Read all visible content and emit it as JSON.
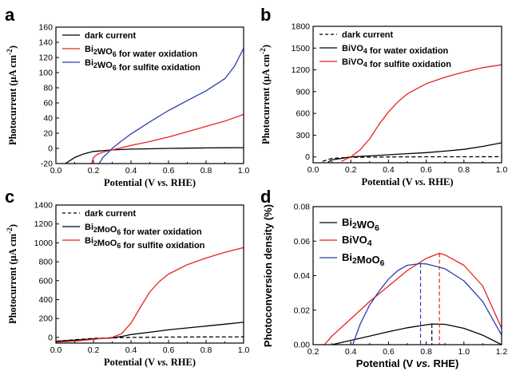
{
  "chart_data": [
    {
      "panel": "a",
      "type": "line",
      "xlabel": "Potential (V vs. RHE)",
      "ylabel": "Photocurrent (μA cm⁻²)",
      "xlim": [
        0.0,
        1.0
      ],
      "ylim": [
        -20,
        160
      ],
      "xticks": [
        "0.0",
        "0.2",
        "0.4",
        "0.6",
        "0.8",
        "1.0"
      ],
      "yticks": [
        "-20",
        "0",
        "20",
        "40",
        "60",
        "80",
        "100",
        "120",
        "140",
        "160"
      ],
      "legend": "top-left",
      "series": [
        {
          "name": "dark current",
          "color": "#000000",
          "dash": "solid",
          "x": [
            0.05,
            0.1,
            0.15,
            0.2,
            0.3,
            0.4,
            0.5,
            0.6,
            0.7,
            0.8,
            0.9,
            1.0
          ],
          "y": [
            -20,
            -12,
            -7,
            -4,
            -2,
            -1,
            -0.5,
            0,
            0.3,
            0.6,
            0.8,
            1
          ]
        },
        {
          "name": "Bi₂WO₆ for water oxidation",
          "color": "#e8221f",
          "dash": "solid",
          "x": [
            0.19,
            0.2,
            0.22,
            0.25,
            0.3,
            0.4,
            0.5,
            0.6,
            0.7,
            0.8,
            0.9,
            1.0
          ],
          "y": [
            -20,
            -12,
            -8,
            -5,
            -2,
            4,
            9,
            15,
            22,
            29,
            36,
            45
          ]
        },
        {
          "name": "Bi₂WO₆ for sulfite oxidation",
          "color": "#2b3fb0",
          "dash": "solid",
          "x": [
            0.23,
            0.25,
            0.28,
            0.3,
            0.35,
            0.4,
            0.5,
            0.6,
            0.7,
            0.8,
            0.9,
            0.95,
            1.0
          ],
          "y": [
            -20,
            -12,
            -5,
            0,
            10,
            19,
            35,
            50,
            63,
            76,
            92,
            108,
            132
          ]
        }
      ]
    },
    {
      "panel": "b",
      "type": "line",
      "xlabel": "Potential (V vs. RHE)",
      "ylabel": "Photocurrent (μA cm⁻²)",
      "xlim": [
        0.0,
        1.0
      ],
      "ylim": [
        -80,
        1800
      ],
      "xticks": [
        "0.0",
        "0.2",
        "0.4",
        "0.6",
        "0.8",
        "1.0"
      ],
      "yticks": [
        "0",
        "300",
        "600",
        "900",
        "1200",
        "1500",
        "1800"
      ],
      "legend": "top-left",
      "series": [
        {
          "name": "dark current",
          "color": "#000000",
          "dash": "dashed",
          "x": [
            0.05,
            0.1,
            0.2,
            0.4,
            0.6,
            0.8,
            1.0
          ],
          "y": [
            -60,
            -20,
            -5,
            0,
            2,
            3,
            4
          ]
        },
        {
          "name": "BiVO₄ for water oxidation",
          "color": "#000000",
          "dash": "solid",
          "x": [
            0.08,
            0.1,
            0.2,
            0.3,
            0.4,
            0.5,
            0.6,
            0.7,
            0.8,
            0.9,
            1.0
          ],
          "y": [
            -70,
            -40,
            0,
            15,
            30,
            45,
            60,
            80,
            105,
            145,
            195
          ]
        },
        {
          "name": "BiVO₄ for sulfite oxidation",
          "color": "#e8221f",
          "dash": "solid",
          "x": [
            0.15,
            0.2,
            0.25,
            0.3,
            0.35,
            0.4,
            0.45,
            0.5,
            0.6,
            0.7,
            0.8,
            0.9,
            1.0
          ],
          "y": [
            -60,
            0,
            100,
            250,
            450,
            620,
            760,
            870,
            1010,
            1100,
            1170,
            1230,
            1270
          ]
        }
      ]
    },
    {
      "panel": "c",
      "type": "line",
      "xlabel": "Potential (V vs. RHE)",
      "ylabel": "Photocurrent (μA cm⁻²)",
      "xlim": [
        0.0,
        1.0
      ],
      "ylim": [
        -60,
        1400
      ],
      "xticks": [
        "0.0",
        "0.2",
        "0.4",
        "0.6",
        "0.8",
        "1.0"
      ],
      "yticks": [
        "0",
        "200",
        "400",
        "600",
        "800",
        "1000",
        "1200",
        "1400"
      ],
      "legend": "top-left",
      "series": [
        {
          "name": "dark current",
          "color": "#000000",
          "dash": "dashed",
          "x": [
            0.0,
            0.2,
            0.4,
            0.6,
            0.8,
            1.0
          ],
          "y": [
            -40,
            -10,
            0,
            3,
            5,
            6
          ]
        },
        {
          "name": "Bi₂MoO₆ for water oxidation",
          "color": "#000000",
          "dash": "solid",
          "x": [
            0.0,
            0.1,
            0.2,
            0.3,
            0.35,
            0.4,
            0.5,
            0.6,
            0.7,
            0.8,
            0.9,
            1.0
          ],
          "y": [
            -40,
            -30,
            -15,
            -5,
            10,
            30,
            55,
            80,
            100,
            120,
            140,
            160
          ]
        },
        {
          "name": "Bi₂MoO₆ for sulfite oxidation",
          "color": "#e8221f",
          "dash": "solid",
          "x": [
            0.0,
            0.1,
            0.2,
            0.3,
            0.35,
            0.4,
            0.45,
            0.5,
            0.55,
            0.6,
            0.7,
            0.8,
            0.9,
            1.0
          ],
          "y": [
            -50,
            -40,
            -20,
            0,
            40,
            150,
            320,
            480,
            590,
            670,
            770,
            840,
            900,
            950
          ]
        }
      ]
    },
    {
      "panel": "d",
      "type": "line",
      "xlabel": "Potential (V vs. RHE)",
      "ylabel": "Photoconversion density (%)",
      "xlim": [
        0.2,
        1.2
      ],
      "ylim": [
        0.0,
        0.08
      ],
      "xticks": [
        "0.2",
        "0.4",
        "0.6",
        "0.8",
        "1.0",
        "1.2"
      ],
      "yticks": [
        "0.00",
        "0.02",
        "0.04",
        "0.06",
        "0.08"
      ],
      "legend": "top-left",
      "series": [
        {
          "name": "Bi₂WO₆",
          "color": "#000000",
          "dash": "solid",
          "x": [
            0.3,
            0.4,
            0.5,
            0.6,
            0.7,
            0.8,
            0.83,
            0.9,
            1.0,
            1.1,
            1.2
          ],
          "y": [
            0.0,
            0.0025,
            0.005,
            0.0075,
            0.0098,
            0.0115,
            0.012,
            0.0118,
            0.0095,
            0.0055,
            0.0
          ]
        },
        {
          "name": "BiVO₄",
          "color": "#e8221f",
          "dash": "solid",
          "x": [
            0.26,
            0.3,
            0.4,
            0.5,
            0.6,
            0.7,
            0.8,
            0.87,
            0.9,
            1.0,
            1.1,
            1.2
          ],
          "y": [
            0.0,
            0.005,
            0.015,
            0.025,
            0.034,
            0.043,
            0.05,
            0.053,
            0.052,
            0.046,
            0.034,
            0.0095
          ]
        },
        {
          "name": "Bi₂MoO₆",
          "color": "#2b3fb0",
          "dash": "solid",
          "x": [
            0.41,
            0.45,
            0.5,
            0.55,
            0.6,
            0.65,
            0.7,
            0.77,
            0.8,
            0.9,
            1.0,
            1.1,
            1.2
          ],
          "y": [
            0.0,
            0.012,
            0.023,
            0.031,
            0.038,
            0.043,
            0.046,
            0.047,
            0.0468,
            0.044,
            0.037,
            0.025,
            0.0055
          ]
        }
      ],
      "markers": [
        {
          "x": 0.77,
          "y": 0.047,
          "color": "#2b3fb0"
        },
        {
          "x": 0.83,
          "y": 0.012,
          "color": "#000000"
        },
        {
          "x": 0.87,
          "y": 0.053,
          "color": "#e8221f"
        }
      ]
    }
  ]
}
